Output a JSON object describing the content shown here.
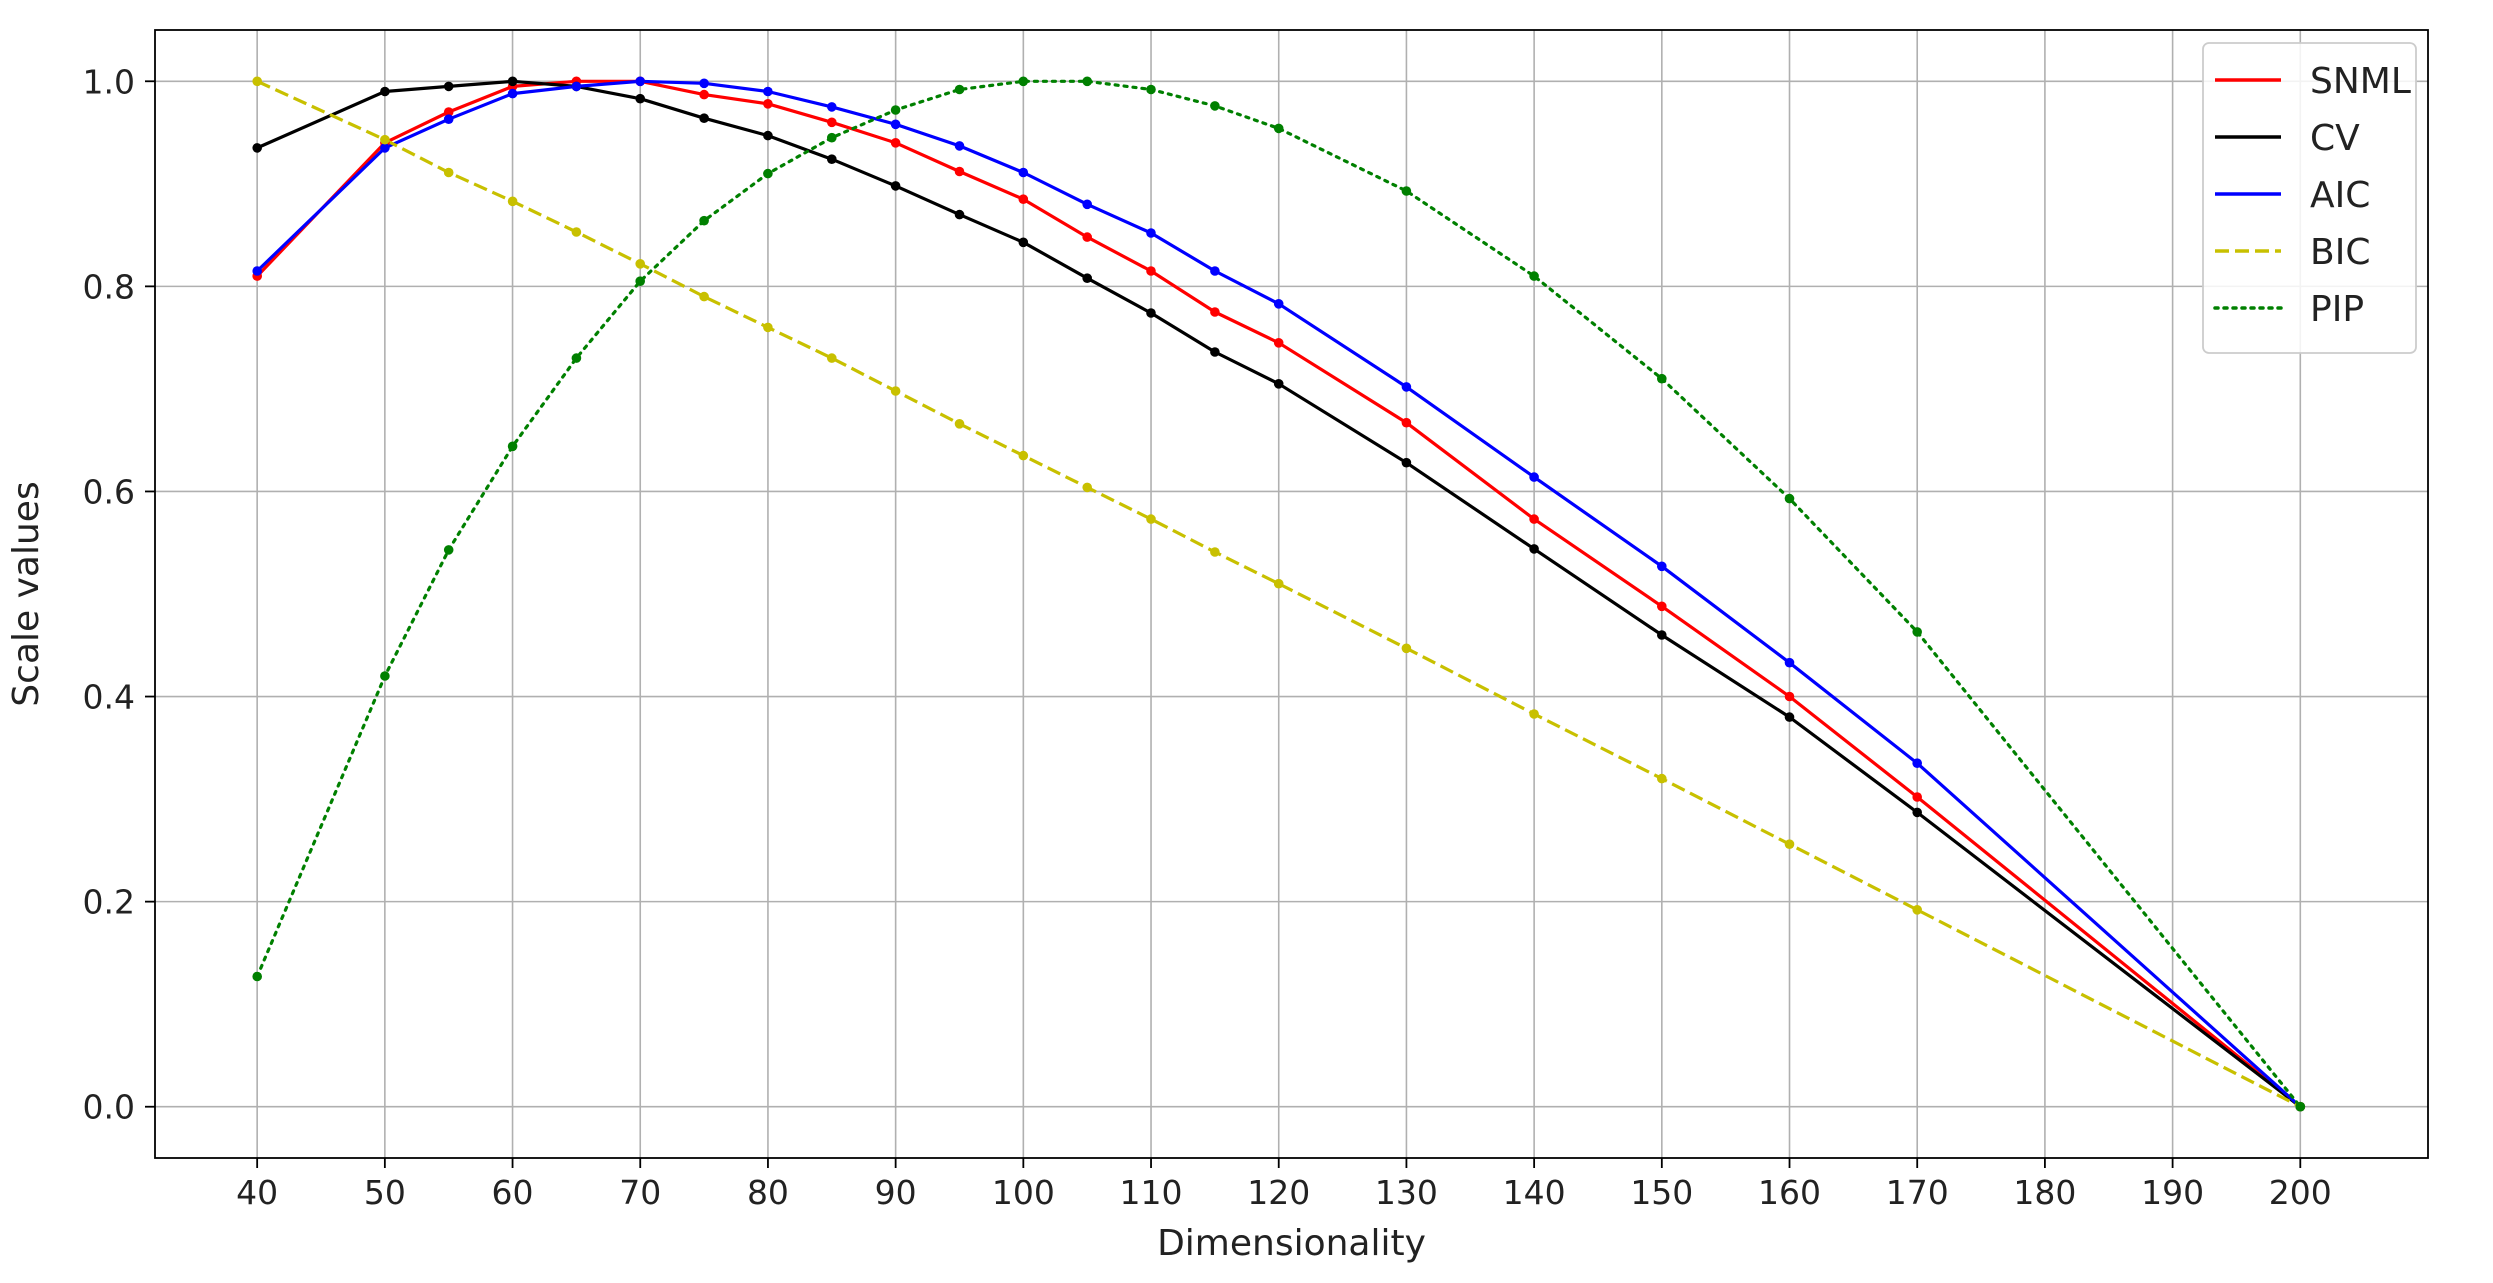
{
  "chart_data": {
    "type": "line",
    "title": "",
    "xlabel": "Dimensionality",
    "ylabel": "Scale values",
    "xlim": [
      32,
      210
    ],
    "ylim": [
      -0.05,
      1.05
    ],
    "xticks": [
      40,
      50,
      60,
      70,
      80,
      90,
      100,
      110,
      120,
      130,
      140,
      150,
      160,
      170,
      180,
      190,
      200
    ],
    "yticks": [
      0.0,
      0.2,
      0.4,
      0.6,
      0.8,
      1.0
    ],
    "ytick_labels": [
      "0.0",
      "0.2",
      "0.4",
      "0.6",
      "0.8",
      "1.0"
    ],
    "grid": true,
    "legend_position": "top-right",
    "x": [
      40,
      50,
      55,
      60,
      65,
      70,
      75,
      80,
      85,
      90,
      95,
      100,
      105,
      110,
      115,
      120,
      130,
      140,
      150,
      160,
      170,
      200
    ],
    "series": [
      {
        "name": "SNML",
        "color": "#ff0000",
        "line_style": "solid",
        "values": [
          0.81,
          0.94,
          0.97,
          0.995,
          1.0,
          1.0,
          0.987,
          0.978,
          0.96,
          0.94,
          0.912,
          0.885,
          0.848,
          0.815,
          0.775,
          0.745,
          0.667,
          0.573,
          0.488,
          0.4,
          0.302,
          0.0
        ]
      },
      {
        "name": "CV",
        "color": "#000000",
        "line_style": "solid",
        "values": [
          0.935,
          0.99,
          0.995,
          1.0,
          0.995,
          0.983,
          0.964,
          0.947,
          0.924,
          0.898,
          0.87,
          0.843,
          0.808,
          0.774,
          0.736,
          0.705,
          0.628,
          0.544,
          0.46,
          0.38,
          0.287,
          0.0
        ]
      },
      {
        "name": "AIC",
        "color": "#0000ff",
        "line_style": "solid",
        "values": [
          0.815,
          0.935,
          0.963,
          0.988,
          0.995,
          1.0,
          0.998,
          0.99,
          0.975,
          0.958,
          0.937,
          0.911,
          0.88,
          0.852,
          0.815,
          0.783,
          0.702,
          0.614,
          0.527,
          0.433,
          0.335,
          0.0
        ]
      },
      {
        "name": "BIC",
        "color": "#c8c000",
        "line_style": "dashed",
        "values": [
          1.0,
          0.943,
          0.911,
          0.883,
          0.853,
          0.822,
          0.79,
          0.76,
          0.73,
          0.698,
          0.666,
          0.635,
          0.604,
          0.573,
          0.541,
          0.51,
          0.447,
          0.383,
          0.32,
          0.256,
          0.192,
          0.0
        ]
      },
      {
        "name": "PIP",
        "color": "#008000",
        "line_style": "dotted",
        "values": [
          0.127,
          0.42,
          0.543,
          0.644,
          0.73,
          0.805,
          0.864,
          0.91,
          0.945,
          0.972,
          0.992,
          1.0,
          1.0,
          0.992,
          0.976,
          0.954,
          0.893,
          0.81,
          0.71,
          0.593,
          0.463,
          0.0
        ]
      }
    ]
  }
}
